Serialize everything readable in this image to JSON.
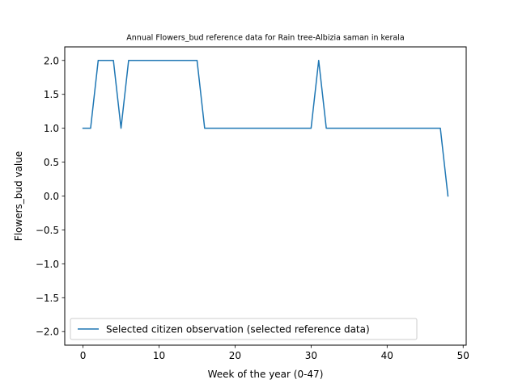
{
  "chart_data": {
    "type": "line",
    "title": "Annual Flowers_bud reference data for Rain tree-Albizia saman in kerala",
    "xlabel": "Week of the year (0-47)",
    "ylabel": "Flowers_bud value",
    "xlim": [
      -2.4,
      50.4
    ],
    "ylim": [
      -2.2,
      2.2
    ],
    "xticks": [
      0,
      10,
      20,
      30,
      40,
      50
    ],
    "yticks": [
      -2.0,
      -1.5,
      -1.0,
      -0.5,
      0.0,
      0.5,
      1.0,
      1.5,
      2.0
    ],
    "xtick_labels": [
      "0",
      "10",
      "20",
      "30",
      "40",
      "50"
    ],
    "ytick_labels": [
      "−2.0",
      "−1.5",
      "−1.0",
      "−0.5",
      "0.0",
      "0.5",
      "1.0",
      "1.5",
      "2.0"
    ],
    "grid": false,
    "legend_position": "lower-left",
    "series": [
      {
        "name": "Selected citizen observation (selected reference data)",
        "color": "#1f77b4",
        "x": [
          0,
          1,
          2,
          3,
          4,
          5,
          6,
          7,
          8,
          9,
          10,
          11,
          12,
          13,
          14,
          15,
          16,
          17,
          18,
          19,
          20,
          21,
          22,
          23,
          24,
          25,
          26,
          27,
          28,
          29,
          30,
          31,
          32,
          33,
          34,
          35,
          36,
          37,
          38,
          39,
          40,
          41,
          42,
          43,
          44,
          45,
          46,
          47,
          48
        ],
        "y": [
          1,
          1,
          2,
          2,
          2,
          1,
          2,
          2,
          2,
          2,
          2,
          2,
          2,
          2,
          2,
          2,
          1,
          1,
          1,
          1,
          1,
          1,
          1,
          1,
          1,
          1,
          1,
          1,
          1,
          1,
          1,
          2,
          1,
          1,
          1,
          1,
          1,
          1,
          1,
          1,
          1,
          1,
          1,
          1,
          1,
          1,
          1,
          1,
          0
        ]
      }
    ]
  }
}
